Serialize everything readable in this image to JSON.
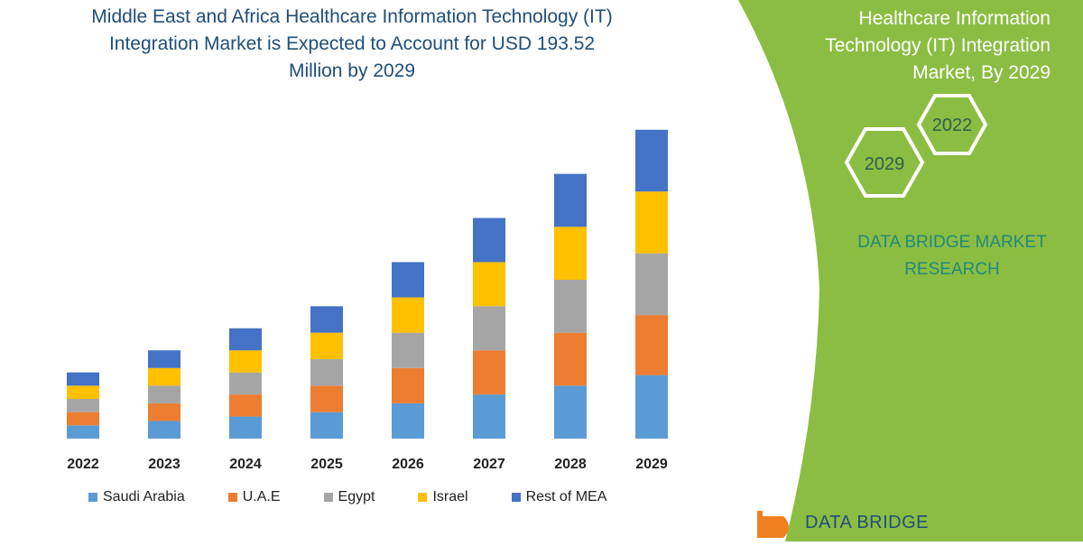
{
  "title_line1": "Middle East and Africa Healthcare Information Technology (IT)",
  "title_line2": "Integration Market is Expected to Account for USD 193.52",
  "title_line3": "Million by 2029",
  "side_panel": {
    "title_line1": "Healthcare Information",
    "title_line2": "Technology (IT) Integration",
    "title_line3": "Market, By 2029",
    "hex_top": "2022",
    "hex_bottom": "2029",
    "brand_line1": "DATA BRIDGE MARKET",
    "brand_line2": "RESEARCH",
    "color": "#8cbd43"
  },
  "logo": {
    "text": "DATA BRIDGE",
    "icon": "data-bridge-logo-icon"
  },
  "chart_data": {
    "type": "bar",
    "stacked": true,
    "categories": [
      "2022",
      "2023",
      "2024",
      "2025",
      "2026",
      "2027",
      "2028",
      "2029"
    ],
    "series": [
      {
        "name": "Saudi Arabia",
        "color": "#5b9bd5",
        "values": [
          15,
          20,
          25,
          30,
          40,
          50,
          60,
          72
        ]
      },
      {
        "name": "U.A.E",
        "color": "#ed7d31",
        "values": [
          15,
          20,
          25,
          30,
          40,
          50,
          60,
          68
        ]
      },
      {
        "name": "Egypt",
        "color": "#a5a5a5",
        "values": [
          15,
          20,
          25,
          30,
          40,
          50,
          60,
          70
        ]
      },
      {
        "name": "Israel",
        "color": "#ffc000",
        "values": [
          15,
          20,
          25,
          30,
          40,
          50,
          60,
          70
        ]
      },
      {
        "name": "Rest of MEA",
        "color": "#4472c4",
        "values": [
          15,
          20,
          25,
          30,
          40,
          50,
          60,
          70
        ]
      }
    ],
    "ylim": [
      0,
      360
    ],
    "grid": false,
    "legend": "bottom"
  }
}
